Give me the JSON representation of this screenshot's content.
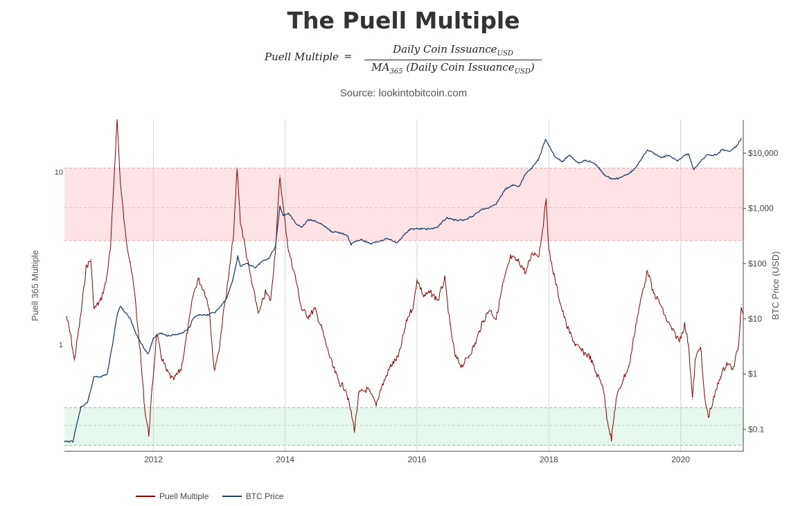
{
  "title": "The Puell Multiple",
  "formula": {
    "lhs": "Puell Multiple",
    "eq": "=",
    "numerator": "Daily Coin Issuance",
    "numerator_sub": "USD",
    "denominator_prefix": "MA",
    "denominator_prefix_sub": "365",
    "denominator_mid": " (Daily Coin Issuance",
    "denominator_sub": "USD",
    "denominator_end": ")"
  },
  "source": "Source: lookintobitcoin.com",
  "colors": {
    "puell": "#8b0000",
    "btc": "#1f3f6b",
    "red_band": "#fde3e5",
    "red_band_line": "#e8a0a4",
    "green_band": "#e6f8ee",
    "green_band_line": "#7fc29a",
    "grid": "#d4d4d4"
  },
  "chart_data": {
    "type": "line",
    "x_domain": [
      2010.65,
      2020.95
    ],
    "x_ticks": [
      {
        "value": 2012,
        "label": "2012"
      },
      {
        "value": 2014,
        "label": "2014"
      },
      {
        "value": 2016,
        "label": "2016"
      },
      {
        "value": 2018,
        "label": "2018"
      },
      {
        "value": 2020,
        "label": "2020"
      }
    ],
    "y_left": {
      "label": "Puell 365 Multiple",
      "scale": "log",
      "range": [
        0.24,
        20
      ],
      "ticks": [
        {
          "value": 1,
          "label": "1"
        },
        {
          "value": 10,
          "label": "10"
        }
      ]
    },
    "y_right": {
      "label": "BTC Price (USD)",
      "scale": "log",
      "range": [
        0.04,
        40000
      ],
      "ticks": [
        {
          "value": 0.1,
          "label": "$0.1"
        },
        {
          "value": 1,
          "label": "$1"
        },
        {
          "value": 10,
          "label": "$10"
        },
        {
          "value": 100,
          "label": "$100"
        },
        {
          "value": 1000,
          "label": "$1,000"
        },
        {
          "value": 10000,
          "label": "$10,000"
        }
      ]
    },
    "bands": [
      {
        "name": "red",
        "from": 4,
        "to": 10.5,
        "mid": 6.2
      },
      {
        "name": "green",
        "from": 0.26,
        "to": 0.43,
        "mid": 0.34
      }
    ],
    "series": [
      {
        "name": "Puell Multiple",
        "color": "#8b0000",
        "points": [
          [
            2010.68,
            1.45
          ],
          [
            2010.75,
            1.1
          ],
          [
            2010.8,
            0.8
          ],
          [
            2010.9,
            1.5
          ],
          [
            2010.98,
            2.8
          ],
          [
            2011.05,
            3.1
          ],
          [
            2011.1,
            1.6
          ],
          [
            2011.2,
            1.8
          ],
          [
            2011.28,
            2.3
          ],
          [
            2011.35,
            3.6
          ],
          [
            2011.42,
            12.5
          ],
          [
            2011.45,
            20
          ],
          [
            2011.5,
            8.5
          ],
          [
            2011.58,
            4.2
          ],
          [
            2011.65,
            3.0
          ],
          [
            2011.72,
            1.9
          ],
          [
            2011.8,
            0.9
          ],
          [
            2011.87,
            0.42
          ],
          [
            2011.93,
            0.3
          ],
          [
            2011.98,
            0.55
          ],
          [
            2012.05,
            1.15
          ],
          [
            2012.12,
            0.85
          ],
          [
            2012.2,
            0.7
          ],
          [
            2012.3,
            0.62
          ],
          [
            2012.42,
            0.72
          ],
          [
            2012.52,
            1.2
          ],
          [
            2012.6,
            1.9
          ],
          [
            2012.68,
            2.4
          ],
          [
            2012.78,
            2.0
          ],
          [
            2012.85,
            1.6
          ],
          [
            2012.92,
            0.7
          ],
          [
            2013.0,
            0.95
          ],
          [
            2013.05,
            1.4
          ],
          [
            2013.15,
            2.6
          ],
          [
            2013.22,
            4.5
          ],
          [
            2013.27,
            10.5
          ],
          [
            2013.32,
            5.2
          ],
          [
            2013.4,
            3.5
          ],
          [
            2013.5,
            2.2
          ],
          [
            2013.6,
            1.5
          ],
          [
            2013.7,
            2.0
          ],
          [
            2013.78,
            1.8
          ],
          [
            2013.85,
            3.5
          ],
          [
            2013.92,
            9.5
          ],
          [
            2013.97,
            6.2
          ],
          [
            2014.05,
            3.5
          ],
          [
            2014.15,
            2.5
          ],
          [
            2014.25,
            1.6
          ],
          [
            2014.35,
            1.45
          ],
          [
            2014.45,
            1.6
          ],
          [
            2014.55,
            1.25
          ],
          [
            2014.62,
            1.0
          ],
          [
            2014.72,
            0.75
          ],
          [
            2014.82,
            0.6
          ],
          [
            2014.92,
            0.55
          ],
          [
            2015.0,
            0.4
          ],
          [
            2015.05,
            0.32
          ],
          [
            2015.12,
            0.52
          ],
          [
            2015.25,
            0.55
          ],
          [
            2015.38,
            0.45
          ],
          [
            2015.45,
            0.55
          ],
          [
            2015.6,
            0.75
          ],
          [
            2015.72,
            0.85
          ],
          [
            2015.85,
            1.4
          ],
          [
            2015.95,
            1.7
          ],
          [
            2016.0,
            2.4
          ],
          [
            2016.1,
            1.9
          ],
          [
            2016.2,
            2.0
          ],
          [
            2016.32,
            1.8
          ],
          [
            2016.42,
            2.4
          ],
          [
            2016.5,
            1.3
          ],
          [
            2016.58,
            0.85
          ],
          [
            2016.68,
            0.75
          ],
          [
            2016.78,
            0.85
          ],
          [
            2016.88,
            1.0
          ],
          [
            2016.98,
            1.3
          ],
          [
            2017.1,
            1.6
          ],
          [
            2017.2,
            1.4
          ],
          [
            2017.3,
            2.2
          ],
          [
            2017.42,
            3.2
          ],
          [
            2017.55,
            3.0
          ],
          [
            2017.65,
            2.6
          ],
          [
            2017.75,
            3.4
          ],
          [
            2017.85,
            3.3
          ],
          [
            2017.93,
            5.5
          ],
          [
            2017.96,
            7.0
          ],
          [
            2018.0,
            3.5
          ],
          [
            2018.08,
            2.5
          ],
          [
            2018.18,
            1.7
          ],
          [
            2018.28,
            1.25
          ],
          [
            2018.4,
            1.0
          ],
          [
            2018.52,
            0.9
          ],
          [
            2018.62,
            0.85
          ],
          [
            2018.72,
            0.68
          ],
          [
            2018.82,
            0.58
          ],
          [
            2018.88,
            0.38
          ],
          [
            2018.95,
            0.28
          ],
          [
            2019.02,
            0.48
          ],
          [
            2019.12,
            0.62
          ],
          [
            2019.22,
            0.75
          ],
          [
            2019.32,
            1.3
          ],
          [
            2019.42,
            2.0
          ],
          [
            2019.5,
            2.7
          ],
          [
            2019.58,
            2.0
          ],
          [
            2019.68,
            1.75
          ],
          [
            2019.78,
            1.4
          ],
          [
            2019.88,
            1.2
          ],
          [
            2019.98,
            1.05
          ],
          [
            2020.06,
            1.3
          ],
          [
            2020.12,
            1.0
          ],
          [
            2020.18,
            0.48
          ],
          [
            2020.22,
            0.8
          ],
          [
            2020.3,
            1.0
          ],
          [
            2020.36,
            0.5
          ],
          [
            2020.42,
            0.38
          ],
          [
            2020.5,
            0.48
          ],
          [
            2020.6,
            0.65
          ],
          [
            2020.7,
            0.78
          ],
          [
            2020.8,
            0.72
          ],
          [
            2020.88,
            1.0
          ],
          [
            2020.92,
            1.7
          ],
          [
            2020.95,
            1.5
          ]
        ]
      },
      {
        "name": "BTC Price",
        "color": "#1f3f6b",
        "points": [
          [
            2010.65,
            0.06
          ],
          [
            2010.78,
            0.06
          ],
          [
            2010.82,
            0.1
          ],
          [
            2010.9,
            0.25
          ],
          [
            2011.0,
            0.3
          ],
          [
            2011.1,
            0.9
          ],
          [
            2011.2,
            0.9
          ],
          [
            2011.3,
            1.0
          ],
          [
            2011.38,
            3.5
          ],
          [
            2011.45,
            12
          ],
          [
            2011.5,
            17
          ],
          [
            2011.55,
            14
          ],
          [
            2011.65,
            10
          ],
          [
            2011.75,
            5
          ],
          [
            2011.85,
            3
          ],
          [
            2011.92,
            2.3
          ],
          [
            2012.0,
            4.5
          ],
          [
            2012.1,
            5.5
          ],
          [
            2012.2,
            5
          ],
          [
            2012.35,
            5.2
          ],
          [
            2012.45,
            5.5
          ],
          [
            2012.55,
            7
          ],
          [
            2012.6,
            10
          ],
          [
            2012.7,
            12
          ],
          [
            2012.8,
            11.5
          ],
          [
            2012.95,
            13.5
          ],
          [
            2013.1,
            22
          ],
          [
            2013.2,
            48
          ],
          [
            2013.28,
            135
          ],
          [
            2013.32,
            90
          ],
          [
            2013.42,
            100
          ],
          [
            2013.55,
            85
          ],
          [
            2013.65,
            110
          ],
          [
            2013.75,
            125
          ],
          [
            2013.85,
            200
          ],
          [
            2013.92,
            1100
          ],
          [
            2013.97,
            750
          ],
          [
            2014.05,
            820
          ],
          [
            2014.15,
            550
          ],
          [
            2014.25,
            450
          ],
          [
            2014.35,
            620
          ],
          [
            2014.45,
            590
          ],
          [
            2014.55,
            520
          ],
          [
            2014.7,
            380
          ],
          [
            2014.85,
            360
          ],
          [
            2014.95,
            310
          ],
          [
            2015.0,
            220
          ],
          [
            2015.05,
            250
          ],
          [
            2015.15,
            270
          ],
          [
            2015.3,
            230
          ],
          [
            2015.45,
            260
          ],
          [
            2015.55,
            285
          ],
          [
            2015.7,
            240
          ],
          [
            2015.8,
            330
          ],
          [
            2015.9,
            420
          ],
          [
            2016.0,
            430
          ],
          [
            2016.15,
            420
          ],
          [
            2016.3,
            450
          ],
          [
            2016.45,
            680
          ],
          [
            2016.55,
            620
          ],
          [
            2016.7,
            610
          ],
          [
            2016.85,
            730
          ],
          [
            2016.98,
            960
          ],
          [
            2017.08,
            1000
          ],
          [
            2017.2,
            1200
          ],
          [
            2017.35,
            2300
          ],
          [
            2017.45,
            2600
          ],
          [
            2017.55,
            2500
          ],
          [
            2017.65,
            4300
          ],
          [
            2017.75,
            5500
          ],
          [
            2017.85,
            8000
          ],
          [
            2017.95,
            17500
          ],
          [
            2018.0,
            14000
          ],
          [
            2018.08,
            9000
          ],
          [
            2018.2,
            7000
          ],
          [
            2018.32,
            9200
          ],
          [
            2018.45,
            6500
          ],
          [
            2018.55,
            7500
          ],
          [
            2018.7,
            6500
          ],
          [
            2018.85,
            4000
          ],
          [
            2018.95,
            3400
          ],
          [
            2019.05,
            3500
          ],
          [
            2019.2,
            4100
          ],
          [
            2019.32,
            5500
          ],
          [
            2019.42,
            8500
          ],
          [
            2019.5,
            11500
          ],
          [
            2019.58,
            10300
          ],
          [
            2019.7,
            8300
          ],
          [
            2019.82,
            9200
          ],
          [
            2019.95,
            7200
          ],
          [
            2020.05,
            9000
          ],
          [
            2020.12,
            9700
          ],
          [
            2020.2,
            5000
          ],
          [
            2020.3,
            7000
          ],
          [
            2020.4,
            9300
          ],
          [
            2020.55,
            9200
          ],
          [
            2020.62,
            11500
          ],
          [
            2020.75,
            10800
          ],
          [
            2020.85,
            13500
          ],
          [
            2020.92,
            18500
          ]
        ]
      }
    ]
  },
  "legend": [
    {
      "label": "Puell Multiple",
      "color": "#8b0000"
    },
    {
      "label": "BTC Price",
      "color": "#1f3f6b"
    }
  ]
}
